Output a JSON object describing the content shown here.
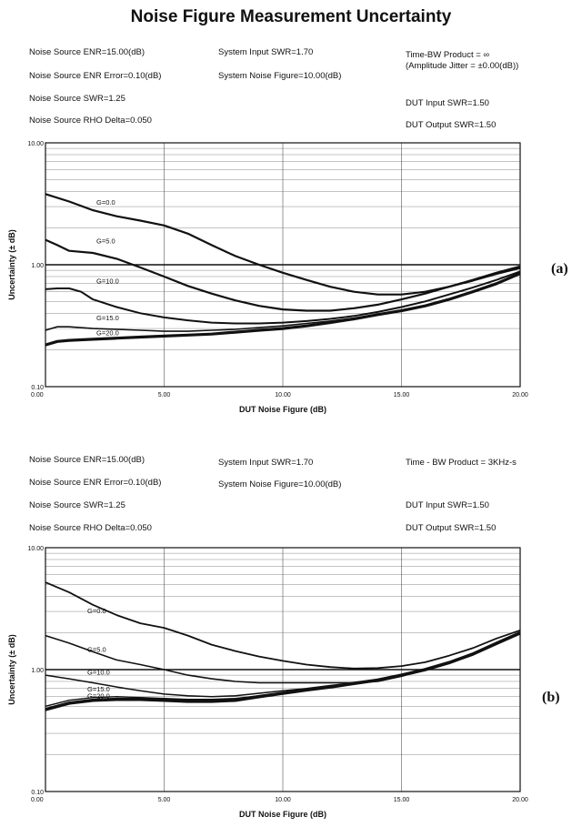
{
  "title": "Noise Figure Measurement Uncertainty",
  "panels": [
    {
      "label": "(a)",
      "params": {
        "enr": "Noise Source ENR=15.00(dB)",
        "enr_error": "Noise Source ENR Error=0.10(dB)",
        "ns_swr": "Noise Source SWR=1.25",
        "rho_delta": "Noise Source RHO Delta=0.050",
        "sys_swr": "System Input SWR=1.70",
        "sys_nf": "System Noise Figure=10.00(dB)",
        "tbw1": "Time-BW Product = ∞",
        "tbw2": "(Amplitude Jitter = ±0.00(dB))",
        "dut_in": "DUT Input SWR=1.50",
        "dut_out": "DUT Output SWR=1.50"
      }
    },
    {
      "label": "(b)",
      "params": {
        "enr": "Noise Source ENR=15.00(dB)",
        "enr_error": "Noise Source ENR Error=0.10(dB)",
        "ns_swr": "Noise Source SWR=1.25",
        "rho_delta": "Noise Source RHO Delta=0.050",
        "sys_swr": "System Input SWR=1.70",
        "sys_nf": "System Noise Figure=10.00(dB)",
        "tbw1": "Time - BW Product = 3KHz-s",
        "tbw2": "",
        "dut_in": "DUT Input SWR=1.50",
        "dut_out": "DUT Output SWR=1.50"
      }
    }
  ],
  "chart_data": [
    {
      "type": "line",
      "xlabel": "DUT Noise Figure (dB)",
      "ylabel": "Uncertainty (± dB)",
      "xlim": [
        0,
        20
      ],
      "ylim": [
        0.1,
        10
      ],
      "yscale": "log",
      "x_ticks": [
        "0.00",
        "5.00",
        "10.00",
        "15.00",
        "20.00"
      ],
      "y_ticks": [
        "10.00",
        "1.00",
        "0.10"
      ],
      "grid": true,
      "reference_line_y": 1.0,
      "series": [
        {
          "name": "G=0.0",
          "x": [
            0,
            1,
            2,
            3,
            4,
            5,
            6,
            7,
            8,
            9,
            10,
            11,
            12,
            13,
            14,
            15,
            16,
            17,
            18,
            19,
            20
          ],
          "y": [
            3.8,
            3.3,
            2.8,
            2.5,
            2.3,
            2.1,
            1.8,
            1.45,
            1.18,
            1.0,
            0.86,
            0.75,
            0.66,
            0.6,
            0.57,
            0.57,
            0.6,
            0.66,
            0.75,
            0.86,
            0.97
          ]
        },
        {
          "name": "G=5.0",
          "x": [
            0,
            0.5,
            1,
            2,
            3,
            4,
            5,
            6,
            7,
            8,
            9,
            10,
            11,
            12,
            13,
            14,
            15,
            16,
            17,
            18,
            19,
            20
          ],
          "y": [
            1.6,
            1.45,
            1.3,
            1.25,
            1.12,
            0.95,
            0.8,
            0.67,
            0.58,
            0.51,
            0.46,
            0.43,
            0.42,
            0.42,
            0.44,
            0.47,
            0.52,
            0.58,
            0.66,
            0.74,
            0.84,
            0.94
          ]
        },
        {
          "name": "G=10.0",
          "x": [
            0,
            0.5,
            1,
            1.5,
            2,
            3,
            4,
            5,
            6,
            7,
            8,
            9,
            10,
            11,
            12,
            13,
            14,
            15,
            16,
            17,
            18,
            19,
            20
          ],
          "y": [
            0.63,
            0.64,
            0.64,
            0.6,
            0.52,
            0.45,
            0.4,
            0.37,
            0.35,
            0.335,
            0.33,
            0.33,
            0.335,
            0.345,
            0.36,
            0.38,
            0.41,
            0.45,
            0.5,
            0.57,
            0.65,
            0.75,
            0.88
          ]
        },
        {
          "name": "G=15.0",
          "x": [
            0,
            0.5,
            1,
            2,
            3,
            4,
            5,
            6,
            7,
            8,
            9,
            10,
            11,
            12,
            13,
            14,
            15,
            16,
            17,
            18,
            19,
            20
          ],
          "y": [
            0.29,
            0.31,
            0.31,
            0.3,
            0.295,
            0.29,
            0.285,
            0.285,
            0.29,
            0.295,
            0.305,
            0.315,
            0.33,
            0.345,
            0.365,
            0.39,
            0.42,
            0.46,
            0.52,
            0.6,
            0.7,
            0.85
          ]
        },
        {
          "name": "G=20.0",
          "x": [
            0,
            0.5,
            1,
            2,
            3,
            4,
            5,
            6,
            7,
            8,
            9,
            10,
            11,
            12,
            13,
            14,
            15,
            16,
            17,
            18,
            19,
            20
          ],
          "y": [
            0.22,
            0.235,
            0.24,
            0.245,
            0.25,
            0.255,
            0.26,
            0.265,
            0.27,
            0.28,
            0.29,
            0.3,
            0.315,
            0.335,
            0.36,
            0.39,
            0.42,
            0.46,
            0.52,
            0.6,
            0.7,
            0.85
          ]
        }
      ]
    },
    {
      "type": "line",
      "xlabel": "DUT Noise Figure (dB)",
      "ylabel": "Uncertainty (± dB)",
      "xlim": [
        0,
        20
      ],
      "ylim": [
        0.1,
        10
      ],
      "yscale": "log",
      "x_ticks": [
        "0.00",
        "5.00",
        "10.00",
        "15.00",
        "20.00"
      ],
      "y_ticks": [
        "10.00",
        "1.00",
        "0.10"
      ],
      "grid": true,
      "reference_line_y": 1.0,
      "series": [
        {
          "name": "G=0.0",
          "x": [
            0,
            1,
            2,
            3,
            4,
            5,
            6,
            7,
            8,
            9,
            10,
            11,
            12,
            13,
            14,
            15,
            16,
            17,
            18,
            19,
            20
          ],
          "y": [
            5.2,
            4.3,
            3.4,
            2.8,
            2.4,
            2.2,
            1.9,
            1.6,
            1.42,
            1.28,
            1.18,
            1.1,
            1.05,
            1.02,
            1.03,
            1.07,
            1.15,
            1.3,
            1.5,
            1.8,
            2.1
          ]
        },
        {
          "name": "G=5.0",
          "x": [
            0,
            1,
            2,
            3,
            4,
            5,
            6,
            7,
            8,
            9,
            10,
            11,
            12,
            13,
            14,
            15,
            16,
            17,
            18,
            19,
            20
          ],
          "y": [
            1.9,
            1.65,
            1.4,
            1.2,
            1.1,
            1.0,
            0.9,
            0.84,
            0.8,
            0.78,
            0.78,
            0.78,
            0.78,
            0.78,
            0.8,
            0.88,
            1.0,
            1.15,
            1.35,
            1.65,
            2.0
          ]
        },
        {
          "name": "G=10.0",
          "x": [
            0,
            1,
            2,
            3,
            4,
            5,
            6,
            7,
            8,
            9,
            10,
            11,
            12,
            13,
            14,
            15,
            16,
            17,
            18,
            19,
            20
          ],
          "y": [
            0.9,
            0.84,
            0.78,
            0.72,
            0.67,
            0.63,
            0.61,
            0.6,
            0.61,
            0.64,
            0.67,
            0.7,
            0.74,
            0.78,
            0.82,
            0.9,
            1.0,
            1.15,
            1.35,
            1.65,
            2.0
          ]
        },
        {
          "name": "G=15.0",
          "x": [
            0,
            1,
            2,
            3,
            4,
            5,
            6,
            7,
            8,
            9,
            10,
            11,
            12,
            13,
            14,
            15,
            16,
            17,
            18,
            19,
            20
          ],
          "y": [
            0.5,
            0.56,
            0.59,
            0.6,
            0.59,
            0.58,
            0.57,
            0.57,
            0.58,
            0.61,
            0.65,
            0.69,
            0.73,
            0.78,
            0.83,
            0.91,
            1.01,
            1.15,
            1.35,
            1.65,
            2.0
          ]
        },
        {
          "name": "G=20.0",
          "x": [
            0,
            1,
            2,
            3,
            4,
            5,
            6,
            7,
            8,
            9,
            10,
            11,
            12,
            13,
            14,
            15,
            16,
            17,
            18,
            19,
            20
          ],
          "y": [
            0.47,
            0.53,
            0.56,
            0.57,
            0.57,
            0.56,
            0.55,
            0.55,
            0.56,
            0.6,
            0.64,
            0.68,
            0.72,
            0.77,
            0.82,
            0.9,
            1.0,
            1.14,
            1.34,
            1.64,
            2.0
          ]
        }
      ]
    }
  ]
}
